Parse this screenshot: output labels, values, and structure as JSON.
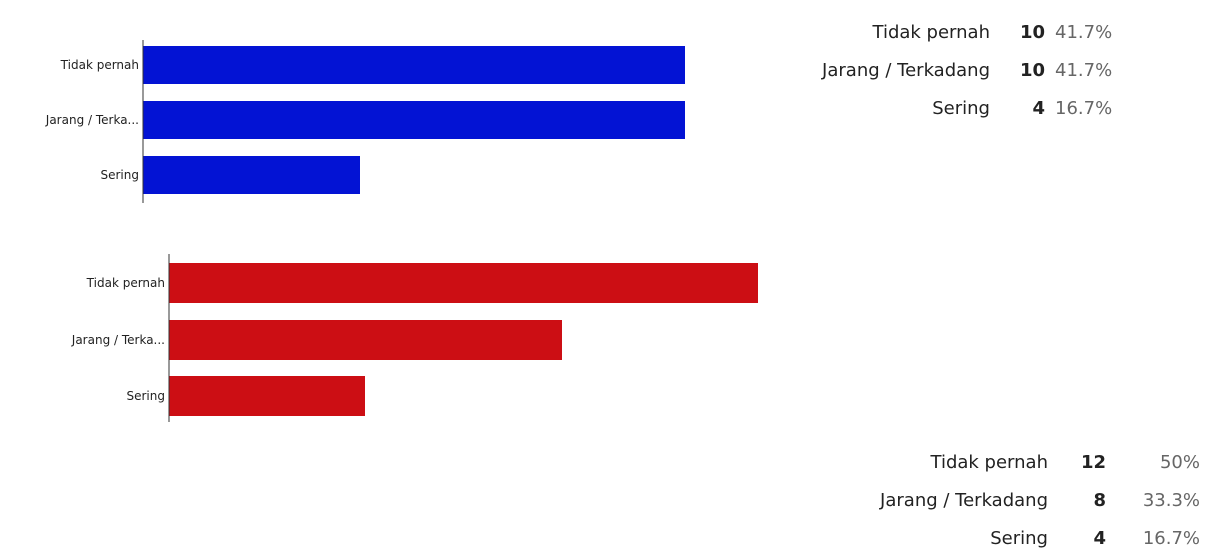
{
  "colors": {
    "chart1_bar": "#0313d4",
    "chart2_bar": "#cc0e14",
    "axis": "#333333"
  },
  "chart_data": [
    {
      "type": "bar",
      "orientation": "horizontal",
      "categories": [
        "Tidak pernah",
        "Jarang / Terka...",
        "Sering"
      ],
      "values": [
        10,
        10,
        4
      ],
      "xlim": [
        0,
        10.8
      ],
      "grid": false,
      "summary": [
        {
          "label": "Tidak pernah",
          "count": "10",
          "percent": "41.7%"
        },
        {
          "label": "Jarang / Terkadang",
          "count": "10",
          "percent": "41.7%"
        },
        {
          "label": "Sering",
          "count": "4",
          "percent": "16.7%"
        }
      ]
    },
    {
      "type": "bar",
      "orientation": "horizontal",
      "categories": [
        "Tidak pernah",
        "Jarang / Terka...",
        "Sering"
      ],
      "values": [
        12,
        8,
        4
      ],
      "xlim": [
        0,
        12.8
      ],
      "grid": false,
      "summary": [
        {
          "label": "Tidak pernah",
          "count": "12",
          "percent": "50%"
        },
        {
          "label": "Jarang / Terkadang",
          "count": "8",
          "percent": "33.3%"
        },
        {
          "label": "Sering",
          "count": "4",
          "percent": "16.7%"
        }
      ]
    }
  ]
}
